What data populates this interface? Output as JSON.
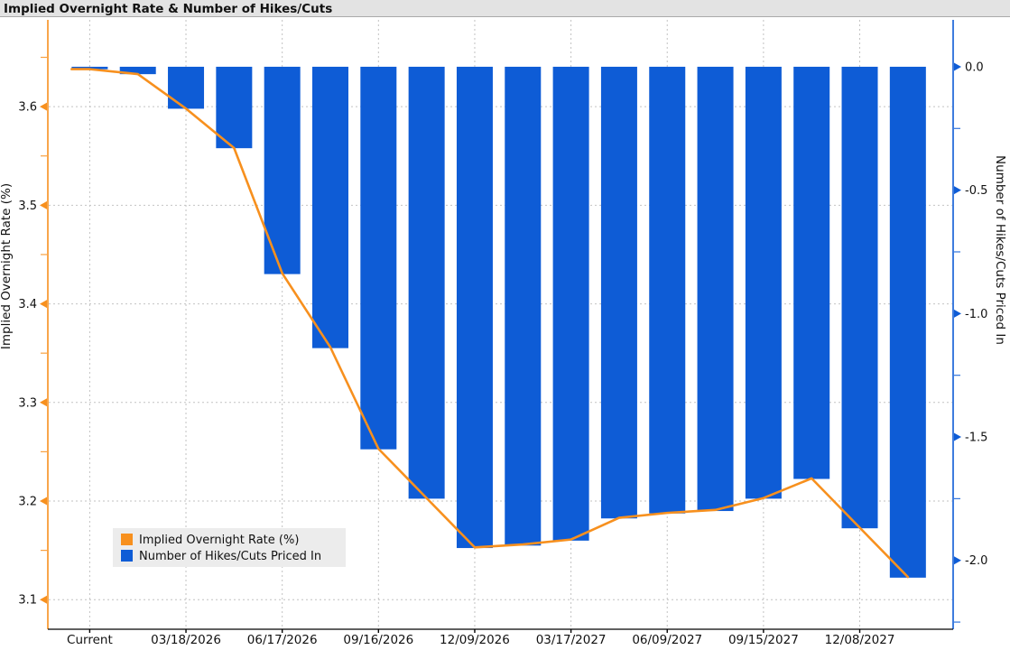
{
  "title": "Implied Overnight Rate & Number of Hikes/Cuts",
  "legend": {
    "items": [
      {
        "label": "Implied Overnight Rate (%)",
        "color": "#f7901e"
      },
      {
        "label": "Number of Hikes/Cuts Priced In",
        "color": "#0e5cd6"
      }
    ]
  },
  "colors": {
    "line_orange": "#f7901e",
    "bar_blue": "#0e5cd6",
    "grid": "#c2c2c2",
    "titlebar_bg": "#e3e3e3",
    "titlebar_border": "#aaaaaa",
    "x_axis": "#000000"
  },
  "chart_data": {
    "type": "bar+line dual-axis",
    "title": "Implied Overnight Rate & Number of Hikes/Cuts",
    "x_tick_labels": [
      "Current",
      "03/18/2026",
      "06/17/2026",
      "09/16/2026",
      "12/09/2026",
      "03/17/2027",
      "06/09/2027",
      "09/15/2027",
      "12/08/2027"
    ],
    "points_per_tick": 2,
    "n_points": 18,
    "grid": "dashed, horizontal at left-axis majors, vertical at labeled dates",
    "legend_position": "lower left",
    "left_axis": {
      "label": "Implied Overnight Rate (%)",
      "ticks": [
        "3.1",
        "3.2",
        "3.3",
        "3.4",
        "3.5",
        "3.6"
      ],
      "minor_step": 0.05,
      "major_step": 0.1,
      "range": [
        3.07,
        3.688
      ],
      "color": "#f7901e"
    },
    "right_axis": {
      "label": "Number of Hikes/Cuts Priced In",
      "ticks": [
        "0.0",
        "-0.5",
        "-1.0",
        "-1.5",
        "-2.0"
      ],
      "minor_step": 0.25,
      "major_step": 0.5,
      "range": [
        -2.279,
        0.19
      ],
      "color": "#0e5cd6"
    },
    "series": [
      {
        "name": "Implied Overnight Rate (%)",
        "type": "line",
        "axis": "left",
        "color": "#f7901e",
        "values": [
          3.638,
          3.633,
          3.598,
          3.558,
          3.431,
          3.356,
          3.253,
          3.203,
          3.153,
          3.156,
          3.161,
          3.183,
          3.188,
          3.191,
          3.203,
          3.223,
          3.173,
          3.123
        ]
      },
      {
        "name": "Number of Hikes/Cuts Priced In",
        "type": "bar",
        "axis": "right",
        "color": "#0e5cd6",
        "values": [
          -0.01,
          -0.03,
          -0.17,
          -0.33,
          -0.84,
          -1.14,
          -1.55,
          -1.75,
          -1.95,
          -1.94,
          -1.92,
          -1.83,
          -1.81,
          -1.8,
          -1.75,
          -1.67,
          -1.87,
          -2.07
        ]
      }
    ]
  }
}
